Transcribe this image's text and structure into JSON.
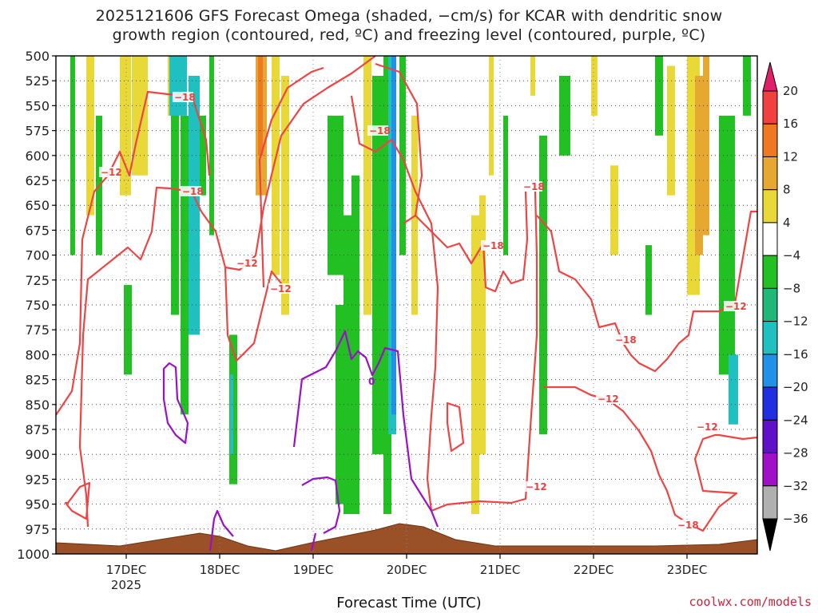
{
  "title_line1": "2025121606 GFS Forecast Omega (shaded, −cm/s) for KCAR with dendritic snow",
  "title_line2": "growth region (contoured, red, ºC) and freezing level (contoured, purple, ºC)",
  "xlabel": "Forecast Time (UTC)",
  "credit": "coolwx.com/models",
  "chart_data": {
    "type": "heatmap",
    "ylim": [
      1000,
      500
    ],
    "y_ticks": [
      "500",
      "525",
      "550",
      "575",
      "600",
      "625",
      "650",
      "675",
      "700",
      "725",
      "750",
      "775",
      "800",
      "825",
      "850",
      "875",
      "900",
      "925",
      "950",
      "975",
      "1000"
    ],
    "x_ticks": [
      "17DEC",
      "18DEC",
      "19DEC",
      "20DEC",
      "21DEC",
      "22DEC",
      "23DEC"
    ],
    "x_year_label": "2025",
    "grid": true,
    "colorbar": {
      "labels": [
        "20",
        "16",
        "12",
        "8",
        "4",
        "−4",
        "−8",
        "−12",
        "−16",
        "−20",
        "−24",
        "−28",
        "−32",
        "−36"
      ],
      "colors": [
        "#e0206a",
        "#f04040",
        "#f07820",
        "#e6a830",
        "#e8d838",
        "#ffffff",
        "#22c022",
        "#20b878",
        "#20c0c0",
        "#2090e8",
        "#2030e0",
        "#6010c8",
        "#a010c8",
        "#b0b0b0",
        "#000000"
      ]
    },
    "contour_labels": {
      "dgz": [
        "−18",
        "−12",
        "−18",
        "−12",
        "−12",
        "−18",
        "−18",
        "−18",
        "−18",
        "−12",
        "−12",
        "−12",
        "−12",
        "−18"
      ],
      "freezing": [
        "0"
      ]
    },
    "series": [
      {
        "name": "dendritic snow growth region",
        "color": "#ee4444"
      },
      {
        "name": "freezing level",
        "color": "#9a10c8"
      }
    ],
    "terrain_color": "#9b5128"
  }
}
